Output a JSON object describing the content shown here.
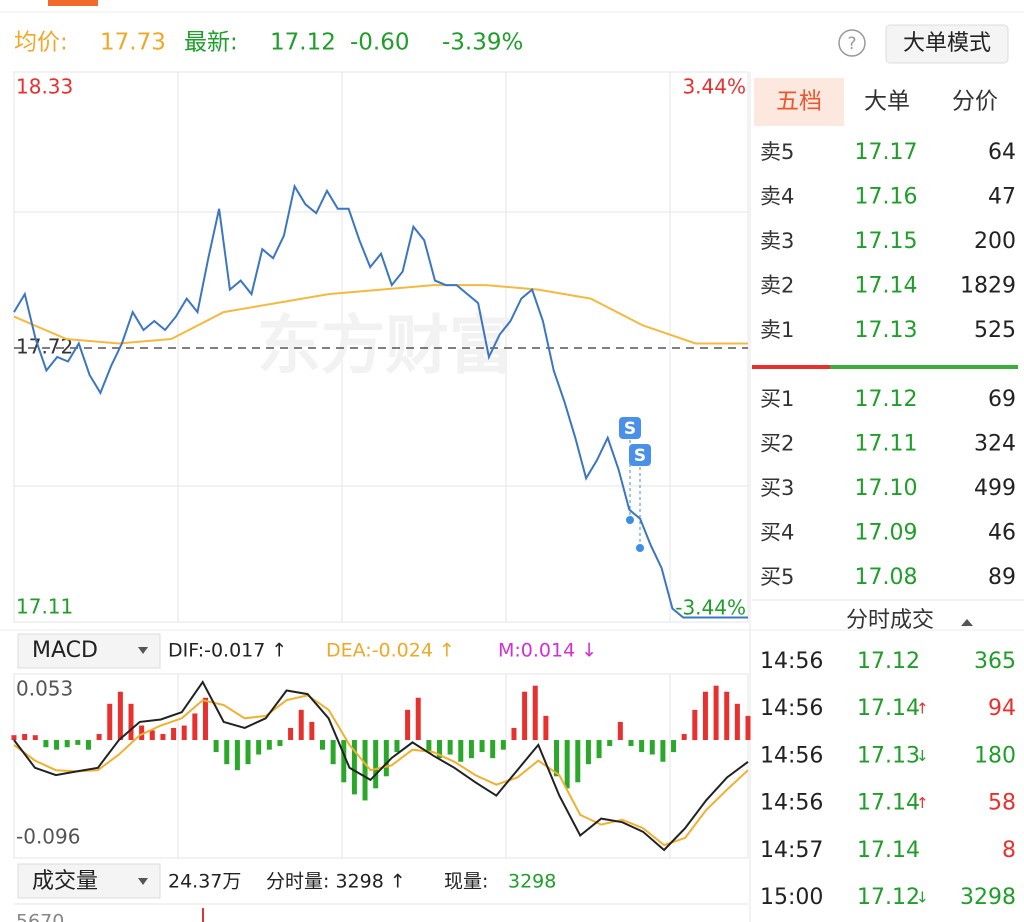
{
  "header": {
    "avg_label": "均价:",
    "avg": "17.73",
    "latest_label": "最新:",
    "latest": "17.12",
    "change": "-0.60",
    "change_pct": "-3.39%",
    "help": "?",
    "mode_button": "大单模式"
  },
  "intraday": {
    "watermark": "东方财富",
    "ylim": [
      17.11,
      18.33
    ],
    "yticks": [
      18.33,
      17.72,
      17.11
    ],
    "ytick_colors": [
      "#e8312f",
      "#333333",
      "#1f9e2a"
    ],
    "pct_labels": [
      "3.44%",
      "-3.44%"
    ],
    "price_color": "#3a76c4",
    "avg_color": "#f5b941",
    "trade_marks": [
      "S",
      "S"
    ],
    "price": [
      17.8,
      17.84,
      17.74,
      17.67,
      17.7,
      17.69,
      17.73,
      17.66,
      17.62,
      17.68,
      17.73,
      17.8,
      17.76,
      17.78,
      17.76,
      17.79,
      17.83,
      17.8,
      17.92,
      18.03,
      17.85,
      17.87,
      17.84,
      17.94,
      17.92,
      17.97,
      18.08,
      18.04,
      18.02,
      18.07,
      18.03,
      18.03,
      17.96,
      17.9,
      17.93,
      17.86,
      17.89,
      17.99,
      17.96,
      17.87,
      17.86,
      17.86,
      17.84,
      17.82,
      17.7,
      17.75,
      17.78,
      17.83,
      17.85,
      17.78,
      17.67,
      17.6,
      17.52,
      17.43,
      17.47,
      17.52,
      17.45,
      17.36,
      17.34,
      17.28,
      17.23,
      17.14,
      17.12,
      17.12,
      17.12,
      17.12,
      17.12,
      17.12,
      17.12
    ],
    "avg": [
      17.79,
      17.74,
      17.73,
      17.74,
      17.8,
      17.82,
      17.84,
      17.85,
      17.86,
      17.86,
      17.85,
      17.83,
      17.77,
      17.73,
      17.73
    ]
  },
  "macd": {
    "indicator": "MACD",
    "dif_label": "DIF:-0.017 ↑",
    "dea_label": "DEA:-0.024 ↑",
    "m_label": "M:0.014 ↓",
    "ylim": [
      -0.096,
      0.053
    ],
    "yticks": [
      0.053,
      -0.096
    ],
    "dif": [
      0,
      -0.023,
      -0.029,
      -0.026,
      -0.023,
      0,
      0.015,
      0.017,
      0.023,
      0.048,
      0.015,
      0.01,
      0.018,
      0.041,
      0.038,
      0.018,
      -0.023,
      -0.033,
      -0.015,
      -0.002,
      -0.013,
      -0.023,
      -0.035,
      -0.046,
      -0.025,
      -0.004,
      -0.046,
      -0.079,
      -0.065,
      -0.068,
      -0.076,
      -0.091,
      -0.073,
      -0.05,
      -0.031,
      -0.018
    ],
    "dea": [
      -0.004,
      -0.017,
      -0.025,
      -0.026,
      -0.025,
      -0.012,
      0.004,
      0.012,
      0.018,
      0.033,
      0.029,
      0.018,
      0.02,
      0.033,
      0.037,
      0.025,
      -0.004,
      -0.025,
      -0.021,
      -0.008,
      -0.01,
      -0.018,
      -0.029,
      -0.037,
      -0.031,
      -0.017,
      -0.029,
      -0.062,
      -0.07,
      -0.066,
      -0.073,
      -0.087,
      -0.081,
      -0.058,
      -0.041,
      -0.025
    ],
    "m": [
      0.004,
      0.005,
      0.004,
      -0.006,
      -0.008,
      -0.006,
      -0.004,
      -0.008,
      0.005,
      0.03,
      0.04,
      0.03,
      0.012,
      0.008,
      0.005,
      0.01,
      0.012,
      0.022,
      0.035,
      -0.01,
      -0.02,
      -0.025,
      -0.02,
      -0.012,
      -0.008,
      -0.005,
      0.01,
      0.025,
      0.015,
      -0.008,
      -0.02,
      -0.035,
      -0.045,
      -0.05,
      -0.04,
      -0.03,
      -0.01,
      0.025,
      0.035,
      -0.01,
      -0.015,
      -0.012,
      -0.018,
      -0.015,
      -0.01,
      -0.015,
      -0.008,
      0.01,
      0.04,
      0.045,
      0.02,
      -0.03,
      -0.04,
      -0.035,
      -0.02,
      -0.015,
      -0.005,
      0.015,
      -0.005,
      -0.01,
      -0.012,
      -0.018,
      -0.01,
      0.005,
      0.025,
      0.04,
      0.045,
      0.04,
      0.03,
      0.02
    ]
  },
  "volume": {
    "indicator": "成交量",
    "total": "24.37万",
    "period_label": "分时量: 3298 ↑",
    "current_label": "现量:",
    "current": "3298",
    "axis_top": "5670"
  },
  "order_book": {
    "tabs": [
      "五档",
      "大单",
      "分价"
    ],
    "sell": [
      {
        "label": "卖5",
        "price": "17.17",
        "volume": "64"
      },
      {
        "label": "卖4",
        "price": "17.16",
        "volume": "47"
      },
      {
        "label": "卖3",
        "price": "17.15",
        "volume": "200"
      },
      {
        "label": "卖2",
        "price": "17.14",
        "volume": "1829"
      },
      {
        "label": "卖1",
        "price": "17.13",
        "volume": "525"
      }
    ],
    "buy": [
      {
        "label": "买1",
        "price": "17.12",
        "volume": "69"
      },
      {
        "label": "买2",
        "price": "17.11",
        "volume": "324"
      },
      {
        "label": "买3",
        "price": "17.10",
        "volume": "499"
      },
      {
        "label": "买4",
        "price": "17.09",
        "volume": "46"
      },
      {
        "label": "买5",
        "price": "17.08",
        "volume": "89"
      }
    ]
  },
  "ticks": {
    "title": "分时成交",
    "trades": [
      {
        "time": "14:56",
        "price": "17.12",
        "volume": "365",
        "volume_color": "#1f9e2a"
      },
      {
        "time": "14:56",
        "price": "17.14",
        "arrow": "↑",
        "arrow_color": "#e8312f",
        "volume": "94",
        "volume_color": "#e8312f"
      },
      {
        "time": "14:56",
        "price": "17.13",
        "arrow": "↓",
        "arrow_color": "#1f9e2a",
        "volume": "180",
        "volume_color": "#1f9e2a"
      },
      {
        "time": "14:56",
        "price": "17.14",
        "arrow": "↑",
        "arrow_color": "#e8312f",
        "volume": "58",
        "volume_color": "#e8312f"
      },
      {
        "time": "14:57",
        "price": "17.14",
        "volume": "8",
        "volume_color": "#e8312f"
      },
      {
        "time": "15:00",
        "price": "17.12",
        "arrow": "↓",
        "arrow_color": "#1f9e2a",
        "volume": "3298",
        "volume_color": "#1f9e2a"
      }
    ]
  }
}
